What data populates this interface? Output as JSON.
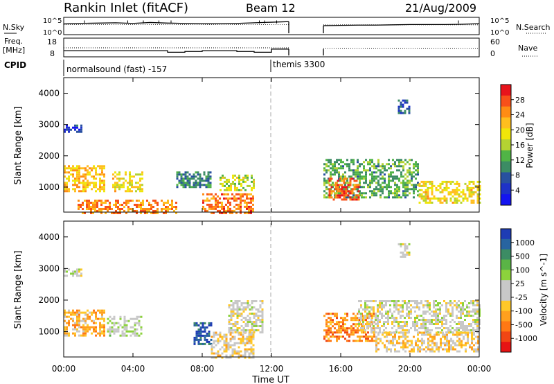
{
  "header": {
    "station": "Rankin Inlet (fitACF)",
    "beam": "Beam 12",
    "date": "21/Aug/2009"
  },
  "noise_panel": {
    "left_label": "N.Sky",
    "right_label": "N.Search",
    "yticks": [
      "10^5",
      "10^0"
    ]
  },
  "freq_panel": {
    "left_label_1": "Freq.",
    "left_label_2": "[MHz]",
    "right_label": "Nave",
    "left_ticks": [
      "18",
      "8"
    ],
    "right_ticks": [
      "60",
      "0"
    ]
  },
  "cpid_panel": {
    "label": "CPID",
    "modes": [
      {
        "start": "00:00",
        "text": "normalsound (fast) -157"
      },
      {
        "start": "12:00",
        "text": "themis 3300"
      }
    ]
  },
  "x_axis": {
    "label": "Time UT",
    "ticks": [
      "00:00",
      "04:00",
      "08:00",
      "12:00",
      "16:00",
      "20:00",
      "00:00"
    ]
  },
  "range_panels": {
    "ylabel": "Slant Range [km]",
    "yticks": [
      "4000",
      "3000",
      "2000",
      "1000"
    ]
  },
  "power_colorbar": {
    "label": "Power [dB]",
    "ticks": [
      "28",
      "24",
      "20",
      "16",
      "12",
      "8",
      "4"
    ],
    "colors": [
      "#e8141c",
      "#f8501a",
      "#ff8c14",
      "#ffbe1e",
      "#f0e60a",
      "#b4d232",
      "#50b446",
      "#3c8c64",
      "#2850a0",
      "#1e32c8",
      "#1414f0"
    ]
  },
  "velocity_colorbar": {
    "label": "Velocity [m s^-1]",
    "ticks": [
      "1000",
      "500",
      "100",
      "25",
      "-25",
      "-100",
      "-500",
      "-1000"
    ],
    "colors": [
      "#1e3cb4",
      "#2864a0",
      "#3c8c64",
      "#5ab446",
      "#8cd23c",
      "#c8c8c8",
      "#c8c8c8",
      "#ffc828",
      "#ffa01e",
      "#ff7814",
      "#f04614",
      "#e61414"
    ]
  },
  "chart_data": [
    {
      "type": "line",
      "title": "Rankin Inlet (fitACF)",
      "subtitle": "Beam 12",
      "series": [
        {
          "name": "N.Sky",
          "x": [
            0,
            1,
            2,
            3,
            4,
            5,
            6,
            7,
            8,
            9,
            10,
            11,
            12,
            13,
            15,
            16,
            17,
            18,
            19,
            20,
            21,
            22,
            23,
            24
          ],
          "y": [
            3.2,
            3.4,
            3.5,
            3.6,
            3.4,
            3.7,
            3.5,
            3.4,
            3.3,
            3.3,
            3.4,
            3.6,
            3.8,
            4.0,
            2.6,
            2.7,
            2.8,
            2.8,
            2.9,
            3.0,
            3.0,
            3.0,
            3.1,
            3.3
          ]
        }
      ],
      "xlim": [
        0,
        24
      ],
      "ylim": [
        0,
        5
      ],
      "yscale": "log"
    },
    {
      "type": "line",
      "series": [
        {
          "name": "Freq.",
          "x": [
            0,
            4,
            6,
            7,
            8,
            10,
            11,
            12,
            13,
            15,
            24
          ],
          "y": [
            11.0,
            11.0,
            10.0,
            10.5,
            11.0,
            10.5,
            10.0,
            12.0,
            12.0,
            12.0,
            12.0
          ]
        }
      ],
      "xlim": [
        0,
        24
      ],
      "ylim": [
        8,
        18
      ]
    },
    {
      "type": "heatmap",
      "xlabel": "Time UT",
      "ylabel": "Slant Range [km]",
      "colorbar_label": "Power [dB]",
      "xlim": [
        0,
        24
      ],
      "ylim": [
        200,
        4500
      ],
      "clim": [
        4,
        30
      ],
      "note_gap": [
        13,
        15
      ],
      "patches": [
        {
          "x": [
            0,
            2.4
          ],
          "y": [
            900,
            1700
          ],
          "value": 22
        },
        {
          "x": [
            2.8,
            4.6
          ],
          "y": [
            900,
            1500
          ],
          "value": 20
        },
        {
          "x": [
            0.8,
            6.5
          ],
          "y": [
            200,
            600
          ],
          "value": 24
        },
        {
          "x": [
            6.5,
            8.5
          ],
          "y": [
            1000,
            1500
          ],
          "value": 12
        },
        {
          "x": [
            8,
            11
          ],
          "y": [
            200,
            800
          ],
          "value": 25
        },
        {
          "x": [
            9,
            11
          ],
          "y": [
            900,
            1400
          ],
          "value": 18
        },
        {
          "x": [
            15,
            20.5
          ],
          "y": [
            700,
            1900
          ],
          "value": 14
        },
        {
          "x": [
            15.3,
            17
          ],
          "y": [
            600,
            1300
          ],
          "value": 26
        },
        {
          "x": [
            20.5,
            24
          ],
          "y": [
            500,
            1200
          ],
          "value": 20
        },
        {
          "x": [
            19.3,
            20
          ],
          "y": [
            3400,
            3800
          ],
          "value": 10
        },
        {
          "x": [
            0,
            1
          ],
          "y": [
            2800,
            3000
          ],
          "value": 8
        }
      ]
    },
    {
      "type": "heatmap",
      "xlabel": "Time UT",
      "ylabel": "Slant Range [km]",
      "colorbar_label": "Velocity [m s^-1]",
      "xlim": [
        0,
        24
      ],
      "ylim": [
        200,
        4500
      ],
      "clim": [
        -1000,
        1000
      ],
      "patches": [
        {
          "x": [
            0,
            2.4
          ],
          "y": [
            900,
            1700
          ],
          "value": -300
        },
        {
          "x": [
            2.5,
            4.5
          ],
          "y": [
            900,
            1500
          ],
          "value": 100
        },
        {
          "x": [
            7.5,
            8.5
          ],
          "y": [
            600,
            1300
          ],
          "value": 800
        },
        {
          "x": [
            8.5,
            11
          ],
          "y": [
            200,
            1000
          ],
          "value": -150
        },
        {
          "x": [
            9.5,
            11.5
          ],
          "y": [
            1000,
            2000
          ],
          "value": 0
        },
        {
          "x": [
            15,
            18
          ],
          "y": [
            700,
            1600
          ],
          "value": -500
        },
        {
          "x": [
            17,
            24
          ],
          "y": [
            1000,
            2000
          ],
          "value": 0
        },
        {
          "x": [
            18,
            24
          ],
          "y": [
            400,
            1000
          ],
          "value": -200
        },
        {
          "x": [
            19.3,
            20
          ],
          "y": [
            3400,
            3800
          ],
          "value": 0
        },
        {
          "x": [
            0,
            1
          ],
          "y": [
            2800,
            3000
          ],
          "value": 0
        }
      ]
    }
  ]
}
